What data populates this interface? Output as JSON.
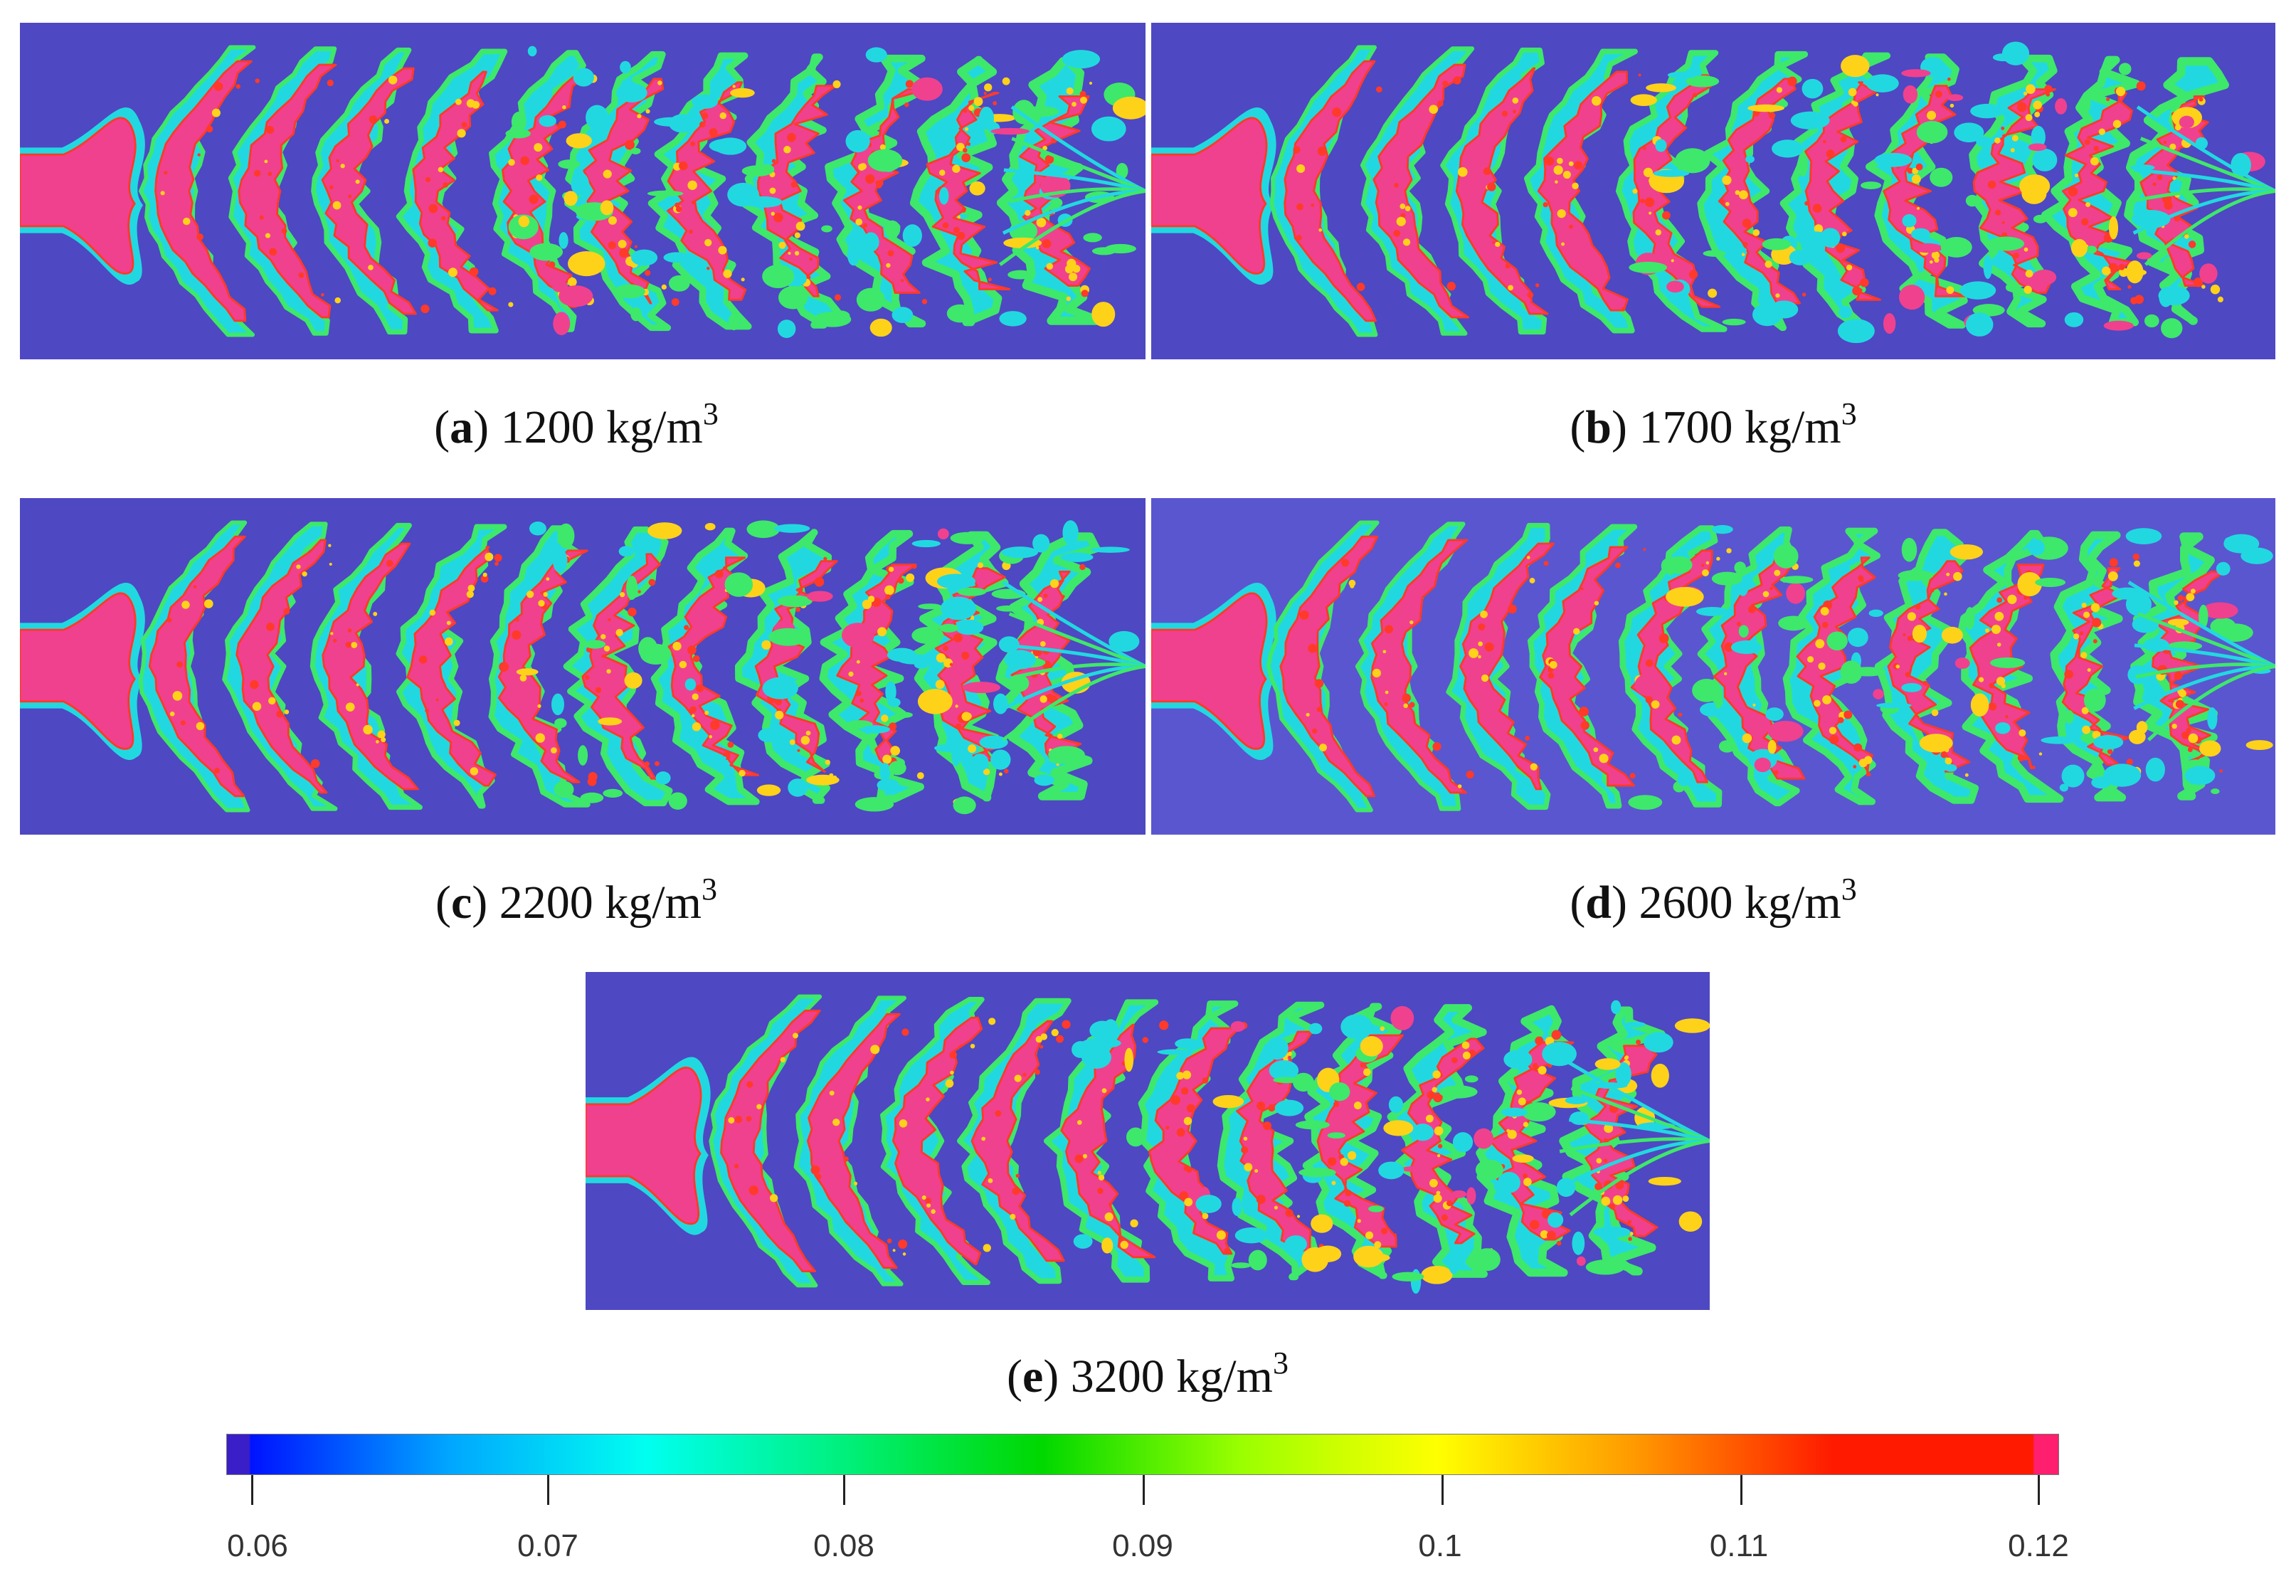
{
  "panels": [
    {
      "letter": "a",
      "value": "1200",
      "unit": "kg/m",
      "exp": "3"
    },
    {
      "letter": "b",
      "value": "1700",
      "unit": "kg/m",
      "exp": "3"
    },
    {
      "letter": "c",
      "value": "2200",
      "unit": "kg/m",
      "exp": "3"
    },
    {
      "letter": "d",
      "value": "2600",
      "unit": "kg/m",
      "exp": "3"
    },
    {
      "letter": "e",
      "value": "3200",
      "unit": "kg/m",
      "exp": "3"
    }
  ],
  "colorbar": {
    "min": 0.06,
    "max": 0.12,
    "ticks": [
      "0.06",
      "0.07",
      "0.08",
      "0.09",
      "0.1",
      "0.11",
      "0.12"
    ],
    "colors": [
      "#3a1fc9",
      "#0012ff",
      "#00a6ff",
      "#00fff0",
      "#00f07c",
      "#00d800",
      "#9aff00",
      "#ffff00",
      "#ff9900",
      "#ff1a00",
      "#ff1f6e"
    ]
  },
  "colors": {
    "background_field": "#4e48c2",
    "contour_outer": "#22d8e0",
    "contour_mid": "#3ee86a",
    "contour_warm": "#ffd21a",
    "contour_hot": "#ff3a2a",
    "core": "#f0418e"
  }
}
